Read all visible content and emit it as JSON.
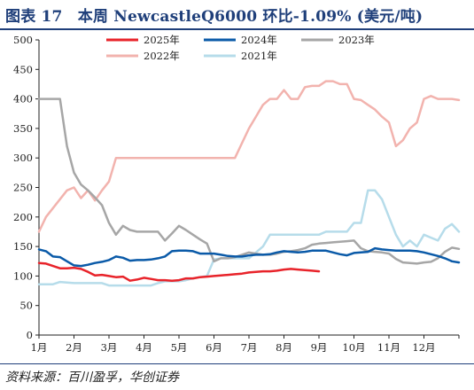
{
  "figure": {
    "title": "图表 17　本周 NewcastleQ6000 环比-1.09% (美元/吨)",
    "source": "资料来源：百川盈孚，华创证券"
  },
  "chart_data": {
    "type": "line",
    "ylim": [
      0,
      500
    ],
    "yticks": [
      0,
      50,
      100,
      150,
      200,
      250,
      300,
      350,
      400,
      450,
      500
    ],
    "xlim": [
      1,
      13
    ],
    "xticks": [
      {
        "v": 1,
        "label": "1月"
      },
      {
        "v": 2,
        "label": "2月"
      },
      {
        "v": 3,
        "label": "3月"
      },
      {
        "v": 4,
        "label": "4月"
      },
      {
        "v": 5,
        "label": "5月"
      },
      {
        "v": 6,
        "label": "6月"
      },
      {
        "v": 7,
        "label": "7月"
      },
      {
        "v": 8,
        "label": "8月"
      },
      {
        "v": 9,
        "label": "9月"
      },
      {
        "v": 10,
        "label": "10月"
      },
      {
        "v": 11,
        "label": "11月"
      },
      {
        "v": 12,
        "label": "12月"
      }
    ],
    "grid": false,
    "legend": "top",
    "series": [
      {
        "name": "2025年",
        "color": "#e8232a",
        "width": 2.5,
        "x": [
          1.0,
          1.2,
          1.4,
          1.6,
          1.8,
          2.0,
          2.2,
          2.4,
          2.6,
          2.8,
          3.0,
          3.2,
          3.4,
          3.6,
          3.8,
          4.0,
          4.2,
          4.4,
          4.6,
          4.8,
          5.0,
          5.2,
          5.4,
          5.6,
          5.8,
          6.0,
          6.2,
          6.4,
          6.6,
          6.8,
          7.0,
          7.2,
          7.4,
          7.6,
          7.8,
          8.0,
          8.2,
          8.4,
          8.6,
          8.8,
          9.0
        ],
        "y": [
          122,
          121,
          117,
          113,
          113,
          114,
          112,
          107,
          101,
          102,
          100,
          98,
          99,
          92,
          94,
          97,
          95,
          93,
          93,
          92,
          93,
          96,
          96,
          98,
          99,
          100,
          101,
          102,
          103,
          104,
          106,
          107,
          108,
          108,
          109,
          111,
          112,
          111,
          110,
          109,
          108
        ]
      },
      {
        "name": "2024年",
        "color": "#0a5aa8",
        "width": 2.5,
        "x": [
          1.0,
          1.2,
          1.4,
          1.6,
          1.8,
          2.0,
          2.2,
          2.4,
          2.6,
          2.8,
          3.0,
          3.2,
          3.4,
          3.6,
          3.8,
          4.0,
          4.2,
          4.4,
          4.6,
          4.8,
          5.0,
          5.2,
          5.4,
          5.6,
          5.8,
          6.0,
          6.2,
          6.4,
          6.6,
          6.8,
          7.0,
          7.2,
          7.4,
          7.6,
          7.8,
          8.0,
          8.2,
          8.4,
          8.6,
          8.8,
          9.0,
          9.2,
          9.4,
          9.6,
          9.8,
          10.0,
          10.2,
          10.4,
          10.6,
          10.8,
          11.0,
          11.2,
          11.4,
          11.6,
          11.8,
          12.0,
          12.2,
          12.4,
          12.6,
          12.8,
          13.0
        ],
        "y": [
          145,
          142,
          133,
          132,
          125,
          118,
          117,
          119,
          122,
          124,
          127,
          133,
          131,
          126,
          127,
          127,
          128,
          130,
          133,
          142,
          143,
          143,
          142,
          138,
          138,
          138,
          136,
          134,
          133,
          133,
          135,
          136,
          136,
          137,
          140,
          142,
          141,
          140,
          141,
          143,
          143,
          143,
          140,
          137,
          135,
          139,
          140,
          141,
          147,
          145,
          144,
          143,
          143,
          143,
          142,
          140,
          137,
          134,
          130,
          125,
          123
        ]
      },
      {
        "name": "2023年",
        "color": "#a6a6a6",
        "width": 2.5,
        "x": [
          1.0,
          1.2,
          1.4,
          1.6,
          1.8,
          2.0,
          2.2,
          2.4,
          2.6,
          2.8,
          3.0,
          3.2,
          3.4,
          3.6,
          3.8,
          4.0,
          4.2,
          4.4,
          4.6,
          4.8,
          5.0,
          5.2,
          5.4,
          5.6,
          5.8,
          6.0,
          6.2,
          6.4,
          6.6,
          6.8,
          7.0,
          7.2,
          7.4,
          7.6,
          7.8,
          8.0,
          8.2,
          8.4,
          8.6,
          8.8,
          9.0,
          9.2,
          9.4,
          9.6,
          9.8,
          10.0,
          10.2,
          10.4,
          10.6,
          10.8,
          11.0,
          11.2,
          11.4,
          11.6,
          11.8,
          12.0,
          12.2,
          12.4,
          12.6,
          12.8,
          13.0
        ],
        "y": [
          400,
          400,
          400,
          400,
          320,
          275,
          255,
          245,
          233,
          220,
          190,
          170,
          185,
          178,
          175,
          175,
          175,
          175,
          160,
          172,
          185,
          178,
          170,
          162,
          155,
          125,
          130,
          130,
          132,
          136,
          140,
          138,
          136,
          136,
          138,
          141,
          142,
          144,
          147,
          153,
          155,
          156,
          157,
          158,
          159,
          160,
          147,
          142,
          141,
          140,
          138,
          129,
          123,
          122,
          121,
          123,
          124,
          130,
          141,
          148,
          146
        ]
      },
      {
        "name": "2022年",
        "color": "#f2b3ae",
        "width": 2.5,
        "x": [
          1.0,
          1.2,
          1.4,
          1.6,
          1.8,
          2.0,
          2.2,
          2.4,
          2.6,
          2.8,
          3.0,
          3.2,
          3.4,
          3.6,
          3.8,
          4.0,
          4.2,
          4.4,
          4.6,
          4.8,
          5.0,
          5.2,
          5.4,
          5.6,
          5.8,
          6.0,
          6.2,
          6.4,
          6.6,
          6.8,
          7.0,
          7.2,
          7.4,
          7.6,
          7.8,
          8.0,
          8.2,
          8.4,
          8.6,
          8.8,
          9.0,
          9.2,
          9.4,
          9.6,
          9.8,
          10.0,
          10.2,
          10.4,
          10.6,
          10.8,
          11.0,
          11.2,
          11.4,
          11.6,
          11.8,
          12.0,
          12.2,
          12.4,
          12.6,
          12.8,
          13.0
        ],
        "y": [
          175,
          200,
          215,
          230,
          245,
          250,
          232,
          245,
          228,
          245,
          260,
          300,
          300,
          300,
          300,
          300,
          300,
          300,
          300,
          300,
          300,
          300,
          300,
          300,
          300,
          300,
          300,
          300,
          300,
          325,
          350,
          370,
          390,
          400,
          400,
          415,
          400,
          400,
          420,
          422,
          422,
          430,
          430,
          425,
          425,
          400,
          398,
          390,
          382,
          370,
          360,
          320,
          330,
          350,
          360,
          400,
          405,
          400,
          400,
          400,
          398
        ]
      },
      {
        "name": "2021年",
        "color": "#b6dcea",
        "width": 2.5,
        "x": [
          1.0,
          1.2,
          1.4,
          1.6,
          1.8,
          2.0,
          2.2,
          2.4,
          2.6,
          2.8,
          3.0,
          3.2,
          3.4,
          3.6,
          3.8,
          4.0,
          4.2,
          4.4,
          4.6,
          4.8,
          5.0,
          5.2,
          5.4,
          5.6,
          5.8,
          6.0,
          6.2,
          6.4,
          6.6,
          6.8,
          7.0,
          7.2,
          7.4,
          7.6,
          7.8,
          8.0,
          8.2,
          8.4,
          8.6,
          8.8,
          9.0,
          9.2,
          9.4,
          9.6,
          9.8,
          10.0,
          10.2,
          10.4,
          10.6,
          10.8,
          11.0,
          11.2,
          11.4,
          11.6,
          11.8,
          12.0,
          12.2,
          12.4,
          12.6,
          12.8,
          13.0
        ],
        "y": [
          86,
          86,
          86,
          90,
          89,
          88,
          88,
          88,
          88,
          88,
          84,
          84,
          84,
          84,
          84,
          84,
          84,
          88,
          91,
          91,
          91,
          93,
          96,
          98,
          100,
          128,
          130,
          130,
          130,
          130,
          130,
          140,
          150,
          170,
          170,
          170,
          170,
          170,
          170,
          170,
          170,
          175,
          175,
          175,
          175,
          190,
          190,
          245,
          245,
          230,
          200,
          170,
          150,
          160,
          150,
          170,
          165,
          160,
          180,
          188,
          175
        ]
      }
    ]
  }
}
